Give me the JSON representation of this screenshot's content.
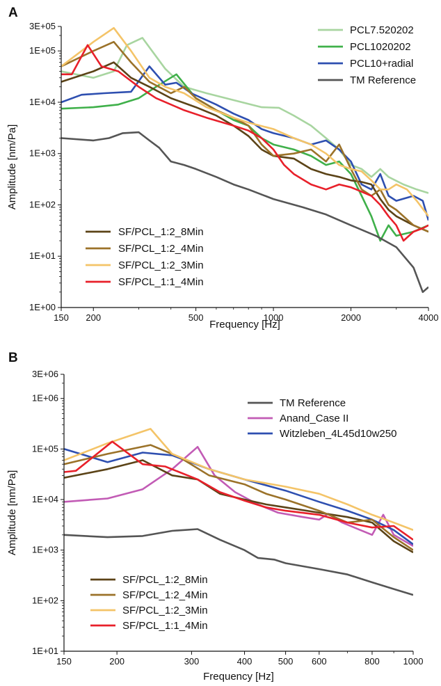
{
  "chart_data": [
    {
      "panel": "A",
      "type": "line",
      "xlabel": "Frequency [Hz]",
      "ylabel": "Amplitude [nm/Pa]",
      "x_scale": "log",
      "y_scale": "log",
      "xlim": [
        150,
        4000
      ],
      "ylim": [
        1,
        300000
      ],
      "x_ticks": [
        150,
        200,
        500,
        1000,
        2000,
        4000
      ],
      "x_tick_labels": [
        "150",
        "200",
        "500",
        "1000",
        "2000",
        "4000"
      ],
      "y_ticks": [
        1,
        10,
        100,
        1000,
        10000,
        100000,
        300000
      ],
      "y_tick_labels": [
        "1E+00",
        "1E+01",
        "1E+02",
        "1E+03",
        "1E+04",
        "1E+05",
        "3E+05"
      ],
      "legend_top_right": [
        "PCL7.520202",
        "PCL1020202",
        "PCL10+radial",
        "TM Reference"
      ],
      "legend_bottom_left": [
        "SF/PCL_1:2_8Min",
        "SF/PCL_1:2_4Min",
        "SF/PCL_1:2_3Min",
        "SF/PCL_1:1_4Min"
      ],
      "series": [
        {
          "name": "PCL7.520202",
          "color": "#a8d5a0",
          "x": [
            150,
            200,
            240,
            270,
            310,
            380,
            450,
            550,
            700,
            900,
            1050,
            1200,
            1400,
            1600,
            1800,
            2000,
            2200,
            2400,
            2600,
            2800,
            3200,
            3600,
            4000
          ],
          "y": [
            40000,
            30000,
            40000,
            130000,
            180000,
            45000,
            20000,
            15000,
            11000,
            8000,
            7800,
            5500,
            3500,
            2000,
            1200,
            600,
            500,
            350,
            500,
            350,
            250,
            200,
            170
          ]
        },
        {
          "name": "PCL1020202",
          "color": "#3fb04a",
          "x": [
            150,
            200,
            250,
            300,
            350,
            420,
            500,
            600,
            700,
            800,
            900,
            1000,
            1200,
            1400,
            1600,
            1800,
            2000,
            2200,
            2400,
            2600,
            2800,
            3000,
            3500,
            4000
          ],
          "y": [
            7500,
            8000,
            9000,
            12000,
            20000,
            35000,
            12000,
            7000,
            4500,
            3500,
            2000,
            1500,
            1200,
            900,
            600,
            700,
            400,
            150,
            60,
            20,
            40,
            25,
            30,
            40
          ]
        },
        {
          "name": "PCL10+radial",
          "color": "#2e4fb0",
          "x": [
            150,
            180,
            220,
            280,
            330,
            380,
            420,
            480,
            600,
            700,
            800,
            900,
            1000,
            1200,
            1400,
            1600,
            1800,
            2000,
            2200,
            2400,
            2600,
            2800,
            3000,
            3500,
            3800,
            4000
          ],
          "y": [
            10000,
            14000,
            15000,
            16000,
            50000,
            22000,
            24000,
            15000,
            9000,
            6000,
            4500,
            3000,
            2500,
            2000,
            1500,
            1800,
            1200,
            700,
            250,
            200,
            400,
            150,
            120,
            150,
            120,
            50
          ]
        },
        {
          "name": "TM Reference",
          "color": "#555555",
          "x": [
            150,
            200,
            230,
            260,
            300,
            330,
            360,
            400,
            450,
            500,
            600,
            700,
            800,
            1000,
            1300,
            1600,
            2000,
            2500,
            3000,
            3500,
            3800,
            4000
          ],
          "y": [
            2000,
            1800,
            2000,
            2500,
            2600,
            1800,
            1300,
            700,
            600,
            500,
            350,
            250,
            200,
            130,
            90,
            65,
            40,
            25,
            15,
            6,
            2,
            2.5
          ]
        },
        {
          "name": "SF/PCL_1:2_8Min",
          "color": "#5b4317",
          "x": [
            150,
            200,
            240,
            280,
            330,
            400,
            500,
            600,
            700,
            800,
            900,
            1000,
            1200,
            1400,
            1600,
            1800,
            2000,
            2200,
            2400,
            2600,
            2800,
            3000,
            3500,
            4000
          ],
          "y": [
            25000,
            40000,
            60000,
            30000,
            20000,
            12000,
            8000,
            5500,
            3500,
            2200,
            1200,
            900,
            800,
            500,
            400,
            350,
            300,
            280,
            250,
            130,
            80,
            60,
            40,
            30
          ]
        },
        {
          "name": "SF/PCL_1:2_4Min",
          "color": "#9b7229",
          "x": [
            150,
            200,
            240,
            280,
            330,
            400,
            450,
            500,
            600,
            700,
            800,
            900,
            1000,
            1200,
            1400,
            1600,
            1800,
            2000,
            2200,
            2400,
            2600,
            2800,
            3000,
            3500,
            4000
          ],
          "y": [
            50000,
            100000,
            150000,
            60000,
            25000,
            15000,
            20000,
            12000,
            7000,
            5000,
            3500,
            1500,
            900,
            1000,
            1200,
            700,
            1500,
            500,
            200,
            150,
            200,
            100,
            80,
            40,
            30
          ]
        },
        {
          "name": "SF/PCL_1:2_3Min",
          "color": "#f4c468",
          "x": [
            150,
            180,
            200,
            240,
            280,
            330,
            380,
            450,
            550,
            700,
            800,
            1000,
            1200,
            1400,
            1600,
            1800,
            2000,
            2200,
            2400,
            2600,
            2800,
            3000,
            3300,
            3600,
            4000
          ],
          "y": [
            50000,
            100000,
            150000,
            280000,
            100000,
            30000,
            20000,
            15000,
            8000,
            5000,
            4000,
            3000,
            2000,
            1500,
            1000,
            600,
            500,
            450,
            300,
            200,
            200,
            250,
            200,
            120,
            60
          ]
        },
        {
          "name": "SF/PCL_1:1_4Min",
          "color": "#e8202a",
          "x": [
            150,
            165,
            190,
            215,
            250,
            300,
            350,
            450,
            550,
            700,
            800,
            900,
            1000,
            1100,
            1200,
            1400,
            1600,
            1800,
            2000,
            2200,
            2400,
            2600,
            2800,
            3000,
            3200,
            3500,
            3800,
            4000
          ],
          "y": [
            35000,
            35000,
            130000,
            50000,
            40000,
            20000,
            12000,
            7000,
            5000,
            3500,
            2800,
            2000,
            1200,
            600,
            400,
            250,
            200,
            250,
            220,
            180,
            150,
            100,
            60,
            40,
            20,
            30,
            35,
            40
          ]
        }
      ]
    },
    {
      "panel": "B",
      "type": "line",
      "xlabel": "Frequency [Hz]",
      "ylabel": "Amplitude [nm/Pa]",
      "x_scale": "log",
      "y_scale": "log",
      "xlim": [
        150,
        1000
      ],
      "ylim": [
        10,
        3000000
      ],
      "x_ticks": [
        150,
        200,
        300,
        400,
        500,
        600,
        800,
        1000
      ],
      "x_tick_labels": [
        "150",
        "200",
        "300",
        "400",
        "500",
        "600",
        "800",
        "1000"
      ],
      "y_ticks": [
        10,
        100,
        1000,
        10000,
        100000,
        1000000,
        3000000
      ],
      "y_tick_labels": [
        "1E+01",
        "1E+02",
        "1E+03",
        "1E+04",
        "1E+05",
        "1E+06",
        "3E+06"
      ],
      "legend_top_right": [
        "TM Reference",
        "Anand_Case II",
        "Witzleben_4L45d10w250"
      ],
      "legend_bottom_left": [
        "SF/PCL_1:2_8Min",
        "SF/PCL_1:2_4Min",
        "SF/PCL_1:2_3Min",
        "SF/PCL_1:1_4Min"
      ],
      "series": [
        {
          "name": "TM Reference",
          "color": "#555555",
          "x": [
            150,
            190,
            230,
            270,
            310,
            350,
            400,
            430,
            470,
            500,
            600,
            700,
            800,
            900,
            1000
          ],
          "y": [
            2000,
            1800,
            1900,
            2400,
            2600,
            1600,
            1000,
            700,
            650,
            550,
            420,
            330,
            230,
            170,
            130
          ]
        },
        {
          "name": "Anand_Case II",
          "color": "#c25bb5",
          "x": [
            150,
            190,
            230,
            270,
            310,
            340,
            380,
            430,
            480,
            550,
            600,
            630,
            680,
            750,
            800,
            850,
            900,
            1000
          ],
          "y": [
            9000,
            10500,
            16000,
            40000,
            110000,
            30000,
            14000,
            8000,
            5500,
            4500,
            4000,
            5200,
            3500,
            2500,
            2000,
            5000,
            2000,
            1200
          ]
        },
        {
          "name": "Witzleben_4L45d10w250",
          "color": "#2e4fb0",
          "x": [
            150,
            190,
            230,
            270,
            330,
            400,
            500,
            600,
            700,
            800,
            900,
            1000
          ],
          "y": [
            100000,
            55000,
            85000,
            75000,
            40000,
            25000,
            15000,
            9000,
            6000,
            4000,
            2500,
            1300
          ]
        },
        {
          "name": "SF/PCL_1:2_8Min",
          "color": "#5b4317",
          "x": [
            150,
            190,
            230,
            270,
            310,
            350,
            400,
            450,
            500,
            600,
            700,
            800,
            900,
            1000
          ],
          "y": [
            27000,
            40000,
            60000,
            30000,
            25000,
            13000,
            10000,
            8000,
            7000,
            5500,
            4500,
            3500,
            1500,
            900
          ]
        },
        {
          "name": "SF/PCL_1:2_4Min",
          "color": "#9b7229",
          "x": [
            150,
            190,
            240,
            280,
            330,
            400,
            450,
            500,
            600,
            700,
            800,
            900,
            1000
          ],
          "y": [
            50000,
            80000,
            120000,
            70000,
            30000,
            20000,
            13000,
            10000,
            6000,
            3500,
            4000,
            1800,
            1000
          ]
        },
        {
          "name": "SF/PCL_1:2_3Min",
          "color": "#f4c468",
          "x": [
            150,
            190,
            240,
            270,
            330,
            400,
            500,
            600,
            700,
            800,
            900,
            1000
          ],
          "y": [
            60000,
            130000,
            250000,
            80000,
            40000,
            25000,
            18000,
            13000,
            8000,
            5000,
            3500,
            2500
          ]
        },
        {
          "name": "SF/PCL_1:1_4Min",
          "color": "#e8202a",
          "x": [
            150,
            160,
            195,
            230,
            260,
            310,
            350,
            400,
            450,
            500,
            600,
            700,
            800,
            900,
            1000
          ],
          "y": [
            35000,
            37000,
            140000,
            50000,
            45000,
            25000,
            14000,
            9500,
            7000,
            6000,
            5000,
            3500,
            2800,
            3000,
            1600
          ]
        }
      ]
    }
  ]
}
